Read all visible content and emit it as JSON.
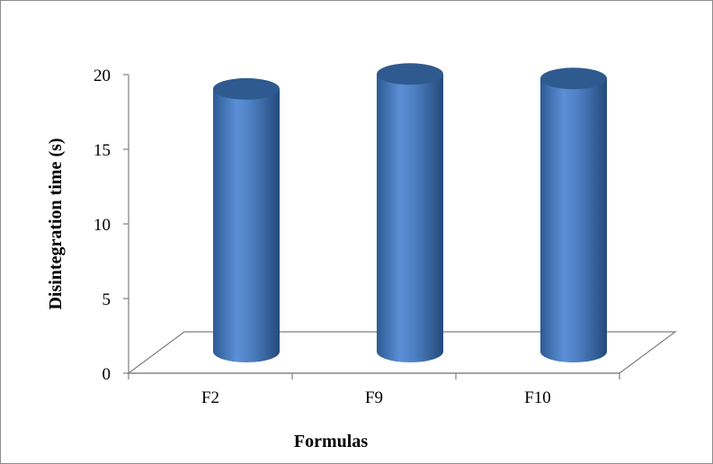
{
  "chart_data": {
    "type": "bar",
    "style": "3d-cylinder",
    "categories": [
      "F2",
      "F9",
      "F10"
    ],
    "values": [
      18.5,
      19.5,
      19.2
    ],
    "xlabel": "Formulas",
    "ylabel": "Disintegration time (s)",
    "ylim": [
      0,
      20
    ],
    "yticks": [
      0,
      5,
      10,
      15,
      20
    ],
    "grid": false,
    "legend": "none",
    "bar_color": "#4f81bd"
  }
}
